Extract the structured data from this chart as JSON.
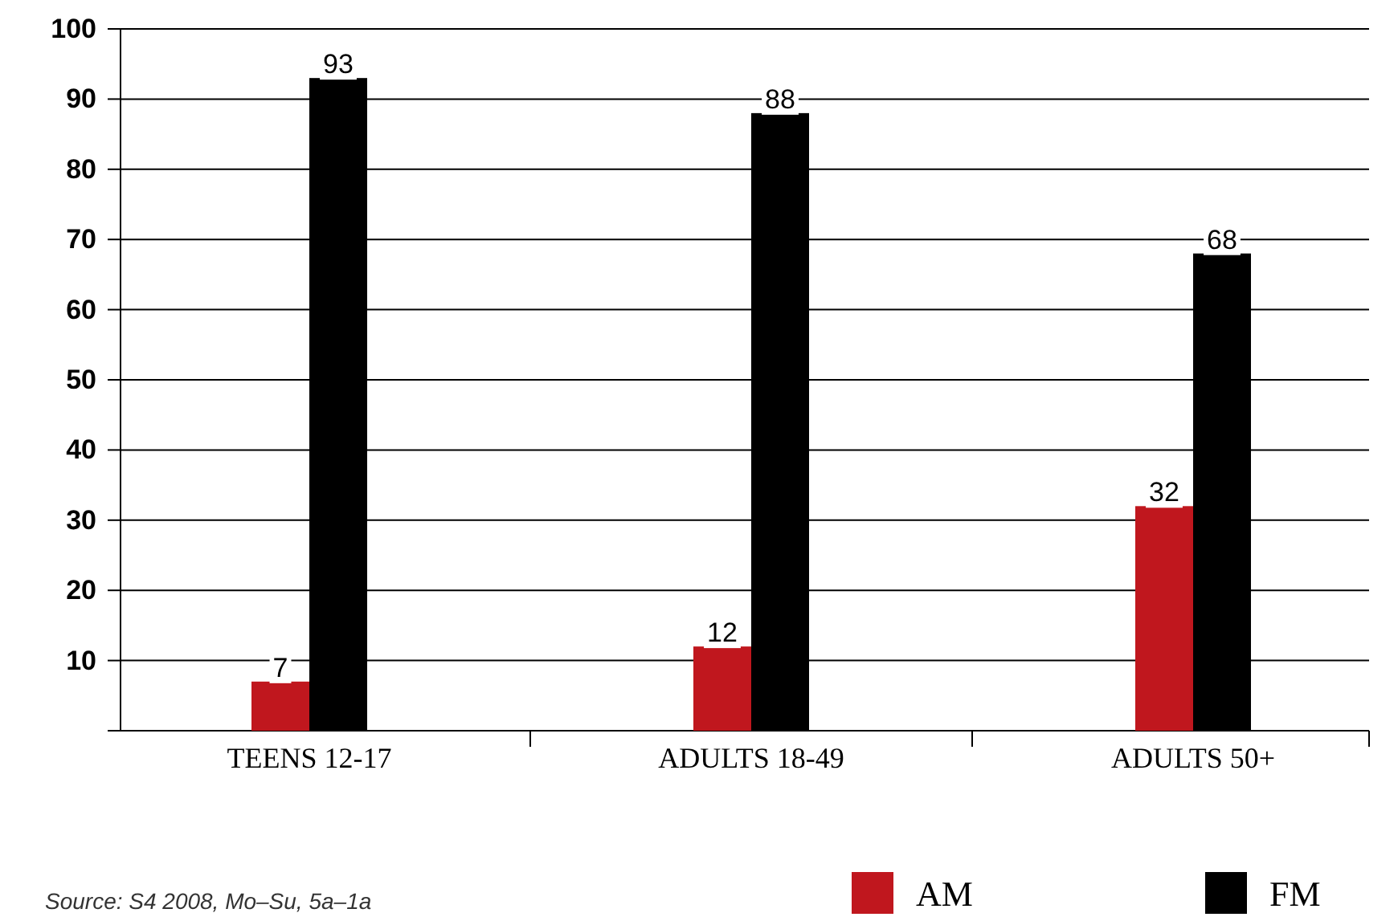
{
  "chart_data": {
    "type": "bar",
    "categories": [
      "TEENS 12-17",
      "ADULTS 18-49",
      "ADULTS 50+"
    ],
    "series": [
      {
        "name": "AM",
        "color": "#c0171e",
        "values": [
          7,
          12,
          32
        ]
      },
      {
        "name": "FM",
        "color": "#000000",
        "values": [
          93,
          88,
          68
        ]
      }
    ],
    "ylim": [
      0,
      100
    ],
    "yticks": [
      {
        "value": 0,
        "label": null
      },
      10,
      20,
      30,
      40,
      50,
      60,
      70,
      80,
      90,
      100
    ],
    "grid": "y",
    "legend": "bottom",
    "data_labels": true,
    "annotations": [
      "Source: S4 2008, Mo–Su, 5a–1a"
    ]
  }
}
